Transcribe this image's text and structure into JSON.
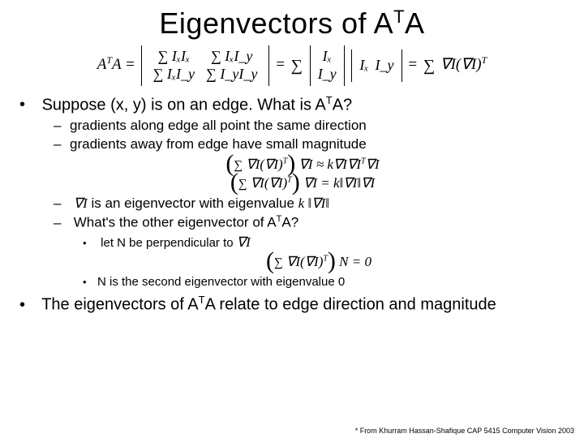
{
  "title_main": "Eigenvectors of A",
  "title_sup": "T",
  "title_tail": "A",
  "eq1": {
    "lhs_sup": "T",
    "m00": "∑ IₓIₓ",
    "m01": "∑ IₓI_y",
    "m10": "∑ IₓI_y",
    "m11": "∑ I_yI_y",
    "col0": "Iₓ",
    "col1": "I_y",
    "row0": "Iₓ",
    "row1": "I_y",
    "rhs_tail_sup": "T"
  },
  "bullet1": "Suppose (x, y) is on an edge.  What is A",
  "bullet1_sup": "T",
  "bullet1_tail": "A?",
  "sub1": "gradients along edge all point the same direction",
  "sub2": "gradients away from edge have small magnitude",
  "eq2_line1_lhs_tail_sup": "T",
  "eq2_line1_rhs_sup": "T",
  "sub3_pre": " ",
  "sub3_mid": " is an eigenvector with eigenvalue ",
  "sub3_kv": "k ‖∇I‖",
  "sub4": "What's the other eigenvector of A",
  "sub4_sup": "T",
  "sub4_tail": "A?",
  "subsub1": "let N be perpendicular to ",
  "subsub1_tail": "∇I",
  "eq3_tail_sup": "T",
  "subsub2": "N is the second eigenvector with eigenvalue 0",
  "bullet2": "The eigenvectors of A",
  "bullet2_sup": "T",
  "bullet2_tail": "A relate to edge direction and magnitude",
  "footer": "* From Khurram Hassan-Shafique CAP 5415 Computer Vision 2003"
}
